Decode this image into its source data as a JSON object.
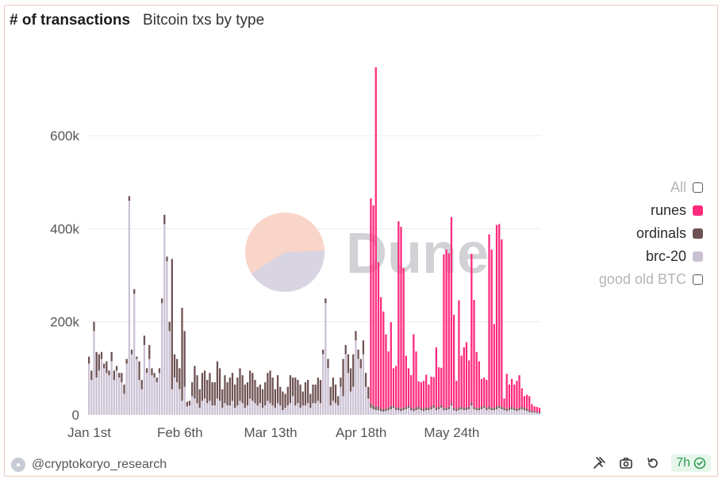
{
  "header": {
    "title": "# of transactions",
    "subtitle": "Bitcoin txs by type"
  },
  "watermark": {
    "text": "Dune"
  },
  "footer": {
    "author": "@cryptokoryo_research",
    "age": "7h"
  },
  "legend": [
    {
      "label": "All",
      "color": "#ffffff",
      "active": false
    },
    {
      "label": "runes",
      "color": "#ff2a7d",
      "active": true
    },
    {
      "label": "ordinals",
      "color": "#6e5253",
      "active": true
    },
    {
      "label": "brc-20",
      "color": "#cbc1d4",
      "active": true
    },
    {
      "label": "good old BTC",
      "color": "#ffffff",
      "active": false
    }
  ],
  "chart_data": {
    "type": "bar",
    "stacked": true,
    "title": "# of transactions",
    "subtitle": "Bitcoin txs by type",
    "x_start": "2024-01-01",
    "x_interval": "1 day",
    "x_ticks": [
      "Jan 1st",
      "Feb 6th",
      "Mar 13th",
      "Apr 18th",
      "May 24th"
    ],
    "y_ticks": [
      "0",
      "200k",
      "400k",
      "600k"
    ],
    "ylim": [
      0,
      780000
    ],
    "grid": true,
    "legend_position": "right",
    "series": [
      {
        "name": "brc-20",
        "color": "#cbc1d4",
        "values": [
          110000,
          75000,
          180000,
          80000,
          95000,
          120000,
          100000,
          90000,
          85000,
          115000,
          75000,
          95000,
          80000,
          70000,
          45000,
          110000,
          460000,
          130000,
          260000,
          120000,
          75000,
          55000,
          150000,
          90000,
          120000,
          85000,
          80000,
          70000,
          90000,
          240000,
          410000,
          330000,
          180000,
          55000,
          80000,
          70000,
          55000,
          30000,
          60000,
          18000,
          20000,
          40000,
          35000,
          25000,
          15000,
          30000,
          35000,
          25000,
          30000,
          20000,
          20000,
          35000,
          30000,
          15000,
          25000,
          20000,
          20000,
          30000,
          15000,
          20000,
          30000,
          25000,
          15000,
          20000,
          35000,
          30000,
          25000,
          20000,
          25000,
          15000,
          20000,
          30000,
          25000,
          20000,
          15000,
          25000,
          20000,
          10000,
          15000,
          20000,
          25000,
          40000,
          20000,
          25000,
          15000,
          20000,
          20000,
          25000,
          15000,
          25000,
          25000,
          30000,
          25000,
          130000,
          240000,
          100000,
          20000,
          30000,
          25000,
          20000,
          60000,
          40000,
          130000,
          90000,
          50000,
          60000,
          160000,
          120000,
          100000,
          130000,
          60000,
          35000,
          15000,
          12000,
          10000,
          10000,
          8000,
          7000,
          8000,
          10000,
          12000,
          15000,
          10000,
          10000,
          8000,
          10000,
          12000,
          15000,
          10000,
          8000,
          10000,
          12000,
          10000,
          8000,
          10000,
          10000,
          12000,
          15000,
          10000,
          12000,
          15000,
          10000,
          10000,
          12000,
          20000,
          10000,
          8000,
          10000,
          12000,
          10000,
          10000,
          12000,
          20000,
          12000,
          10000,
          10000,
          12000,
          15000,
          10000,
          12000,
          10000,
          10000,
          12000,
          15000,
          12000,
          10000,
          8000,
          10000,
          12000,
          10000,
          8000,
          10000,
          12000,
          10000,
          8000,
          6000,
          5000,
          5000,
          4000,
          3000
        ]
      },
      {
        "name": "ordinals",
        "color": "#6e5253",
        "values": [
          15000,
          20000,
          20000,
          55000,
          35000,
          15000,
          10000,
          25000,
          10000,
          20000,
          20000,
          10000,
          10000,
          20000,
          20000,
          10000,
          10000,
          10000,
          10000,
          5000,
          40000,
          20000,
          20000,
          10000,
          30000,
          15000,
          10000,
          10000,
          10000,
          10000,
          20000,
          10000,
          20000,
          280000,
          50000,
          50000,
          45000,
          200000,
          120000,
          10000,
          10000,
          30000,
          70000,
          60000,
          40000,
          60000,
          60000,
          50000,
          60000,
          50000,
          50000,
          80000,
          70000,
          40000,
          60000,
          50000,
          60000,
          60000,
          50000,
          60000,
          70000,
          60000,
          50000,
          50000,
          60000,
          60000,
          50000,
          40000,
          40000,
          40000,
          50000,
          60000,
          70000,
          60000,
          40000,
          60000,
          40000,
          40000,
          30000,
          40000,
          60000,
          40000,
          60000,
          50000,
          50000,
          30000,
          50000,
          50000,
          30000,
          40000,
          40000,
          50000,
          50000,
          10000,
          10000,
          20000,
          40000,
          50000,
          40000,
          20000,
          20000,
          80000,
          20000,
          40000,
          50000,
          70000,
          20000,
          20000,
          20000,
          30000,
          30000,
          25000,
          10000,
          8000,
          7000,
          8000,
          5000,
          5000,
          5000,
          6000,
          7000,
          5000,
          5000,
          6000,
          6000,
          5000,
          5000,
          5000,
          5000,
          5000,
          6000,
          5000,
          5000,
          5000,
          6000,
          5000,
          5000,
          6000,
          5000,
          5000,
          6000,
          5000,
          5000,
          5000,
          5000,
          5000,
          5000,
          6000,
          5000,
          5000,
          6000,
          5000,
          6000,
          5000,
          5000,
          5000,
          5000,
          5000,
          5000,
          6000,
          5000,
          5000,
          6000,
          5000,
          5000,
          5000,
          5000,
          5000,
          5000,
          5000,
          5000,
          5000,
          5000,
          5000,
          5000,
          4000,
          3000,
          3000,
          3000,
          2000
        ]
      },
      {
        "name": "runes",
        "color": "#ff2a7d",
        "values": [
          0,
          0,
          0,
          0,
          0,
          0,
          0,
          0,
          0,
          0,
          0,
          0,
          0,
          0,
          0,
          0,
          0,
          0,
          0,
          0,
          0,
          0,
          0,
          0,
          0,
          0,
          0,
          0,
          0,
          0,
          0,
          0,
          0,
          0,
          0,
          0,
          0,
          0,
          0,
          0,
          0,
          0,
          0,
          0,
          0,
          0,
          0,
          0,
          0,
          0,
          0,
          0,
          0,
          0,
          0,
          0,
          0,
          0,
          0,
          0,
          0,
          0,
          0,
          0,
          0,
          0,
          0,
          0,
          0,
          0,
          0,
          0,
          0,
          0,
          0,
          0,
          0,
          0,
          0,
          0,
          0,
          0,
          0,
          0,
          0,
          0,
          0,
          0,
          0,
          0,
          0,
          0,
          0,
          0,
          0,
          0,
          0,
          0,
          0,
          0,
          0,
          0,
          0,
          0,
          0,
          0,
          0,
          0,
          0,
          0,
          0,
          0,
          440000,
          430000,
          730000,
          310000,
          240000,
          210000,
          160000,
          120000,
          180000,
          80000,
          90000,
          400000,
          390000,
          300000,
          110000,
          80000,
          70000,
          160000,
          120000,
          55000,
          55000,
          60000,
          70000,
          50000,
          65000,
          60000,
          130000,
          85000,
          80000,
          330000,
          340000,
          330000,
          400000,
          200000,
          60000,
          230000,
          110000,
          130000,
          140000,
          100000,
          320000,
          230000,
          120000,
          100000,
          60000,
          60000,
          60000,
          370000,
          340000,
          180000,
          390000,
          390000,
          360000,
          20000,
          75000,
          50000,
          60000,
          50000,
          60000,
          70000,
          40000,
          25000,
          30000,
          30000,
          15000,
          10000,
          10000,
          10000
        ]
      }
    ]
  }
}
